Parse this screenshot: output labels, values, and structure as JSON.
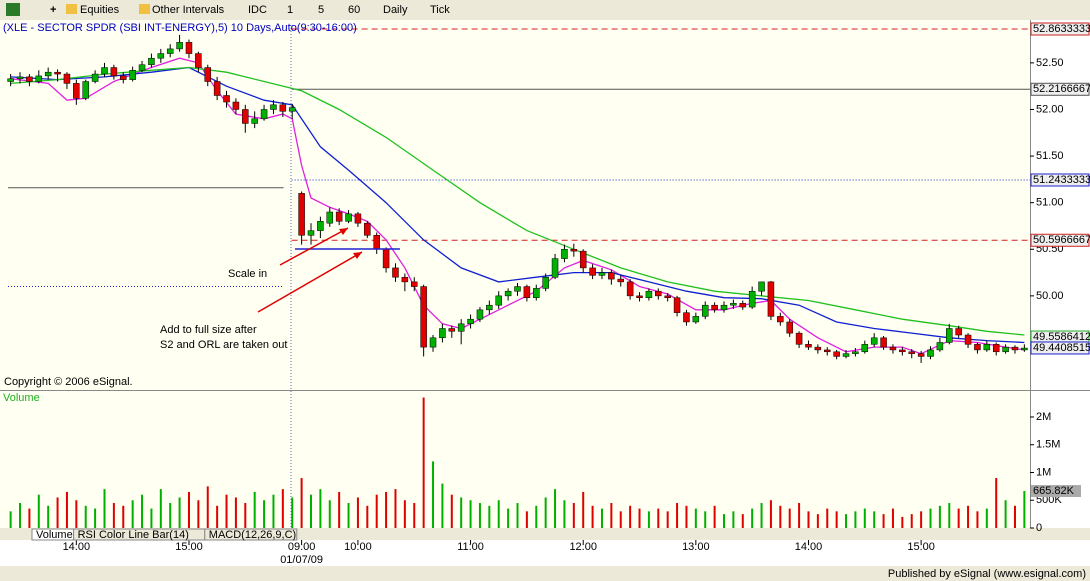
{
  "toolbar": {
    "items": [
      "Equities",
      "Other Intervals",
      "IDC",
      "1",
      "5",
      "60",
      "Daily",
      "Tick"
    ]
  },
  "chart_data": [
    {
      "type": "candlestick",
      "title": "(XLE - SECTOR SPDR (SBI INT-ENERGY),5) 10 Days,Auto(9:30-16:00)",
      "copyright": "Copyright © 2006 eSignal.",
      "annotations": [
        "Scale in",
        "Add to full size after",
        "S2 and ORL are taken out"
      ],
      "xlim": [
        -0.6,
        108.6
      ],
      "xticks": [
        {
          "value": 7,
          "label": "14:00"
        },
        {
          "value": 19,
          "label": "15:00"
        },
        {
          "value": 31,
          "label": "09:00"
        },
        {
          "value": 37,
          "label": "10:00"
        },
        {
          "value": 49,
          "label": "11:00"
        },
        {
          "value": 61,
          "label": "12:00"
        },
        {
          "value": 73,
          "label": "13:00"
        },
        {
          "value": 85,
          "label": "14:00"
        },
        {
          "value": 97,
          "label": "15:00"
        }
      ],
      "xdate": {
        "value": 31,
        "label": "01/07/09"
      },
      "ylim": [
        48.99,
        52.96
      ],
      "yticks": [
        {
          "value": 52.5,
          "label": "52.50"
        },
        {
          "value": 52,
          "label": "52.00"
        },
        {
          "value": 51.5,
          "label": "51.50"
        },
        {
          "value": 51,
          "label": "51.00"
        },
        {
          "value": 50.5,
          "label": "50.50"
        },
        {
          "value": 50,
          "label": "50.00"
        }
      ],
      "up_color": "#00b000",
      "down_color": "#e00000",
      "levels": [
        {
          "value": 52.8633333,
          "color": "#d02020",
          "style": "dash",
          "line": true
        },
        {
          "value": 52.2166667,
          "color": "#555555",
          "style": "solid",
          "line": true
        },
        {
          "value": 51.2433333,
          "color": "#2020d0",
          "style": "dot",
          "line": true
        },
        {
          "value": 50.5966667,
          "color": "#d02020",
          "style": "dash",
          "line": true
        },
        {
          "value": 49.5586412,
          "color": "#20b020",
          "style": "solid",
          "line": false
        },
        {
          "value": 49.4408515,
          "color": "#2020d0",
          "style": "solid",
          "line": false
        }
      ],
      "prior_levels": [
        {
          "value": 51.16,
          "color": "#555555"
        },
        {
          "value": 50.1,
          "color": "#2020d0"
        }
      ],
      "ohlc": [
        [
          52.3,
          52.38,
          52.25,
          52.33
        ],
        [
          52.33,
          52.4,
          52.28,
          52.35
        ],
        [
          52.35,
          52.38,
          52.25,
          52.3
        ],
        [
          52.3,
          52.42,
          52.28,
          52.36
        ],
        [
          52.36,
          52.45,
          52.32,
          52.4
        ],
        [
          52.4,
          52.43,
          52.3,
          52.38
        ],
        [
          52.38,
          52.4,
          52.22,
          52.28
        ],
        [
          52.28,
          52.32,
          52.05,
          52.12
        ],
        [
          52.12,
          52.32,
          52.1,
          52.3
        ],
        [
          52.3,
          52.42,
          52.28,
          52.38
        ],
        [
          52.38,
          52.5,
          52.35,
          52.45
        ],
        [
          52.45,
          52.48,
          52.32,
          52.36
        ],
        [
          52.36,
          52.4,
          52.28,
          52.32
        ],
        [
          52.32,
          52.46,
          52.3,
          52.42
        ],
        [
          52.42,
          52.52,
          52.4,
          52.48
        ],
        [
          52.48,
          52.6,
          52.45,
          52.55
        ],
        [
          52.55,
          52.65,
          52.5,
          52.6
        ],
        [
          52.6,
          52.7,
          52.56,
          52.65
        ],
        [
          52.65,
          52.8,
          52.62,
          52.72
        ],
        [
          52.72,
          52.75,
          52.55,
          52.6
        ],
        [
          52.6,
          52.62,
          52.4,
          52.45
        ],
        [
          52.45,
          52.48,
          52.25,
          52.3
        ],
        [
          52.3,
          52.35,
          52.1,
          52.15
        ],
        [
          52.15,
          52.2,
          52.02,
          52.08
        ],
        [
          52.08,
          52.12,
          51.95,
          52.0
        ],
        [
          52.0,
          52.05,
          51.75,
          51.85
        ],
        [
          51.85,
          51.98,
          51.8,
          51.9
        ],
        [
          51.9,
          52.05,
          51.88,
          52.0
        ],
        [
          52.0,
          52.1,
          51.95,
          52.05
        ],
        [
          52.05,
          52.08,
          51.92,
          51.98
        ],
        [
          51.98,
          52.06,
          51.9,
          52.02
        ],
        [
          51.1,
          51.12,
          50.55,
          50.65
        ],
        [
          50.65,
          50.78,
          50.55,
          50.7
        ],
        [
          50.7,
          50.85,
          50.62,
          50.8
        ],
        [
          50.78,
          50.95,
          50.74,
          50.9
        ],
        [
          50.9,
          50.94,
          50.76,
          50.8
        ],
        [
          50.8,
          50.92,
          50.78,
          50.88
        ],
        [
          50.88,
          50.9,
          50.74,
          50.78
        ],
        [
          50.78,
          50.8,
          50.62,
          50.65
        ],
        [
          50.65,
          50.68,
          50.45,
          50.5
        ],
        [
          50.5,
          50.52,
          50.25,
          50.3
        ],
        [
          50.3,
          50.35,
          50.15,
          50.2
        ],
        [
          50.2,
          50.24,
          50.05,
          50.15
        ],
        [
          50.15,
          50.2,
          50.05,
          50.1
        ],
        [
          50.1,
          50.12,
          49.35,
          49.45
        ],
        [
          49.45,
          49.58,
          49.4,
          49.55
        ],
        [
          49.55,
          49.7,
          49.5,
          49.65
        ],
        [
          49.65,
          49.68,
          49.55,
          49.62
        ],
        [
          49.62,
          49.75,
          49.48,
          49.7
        ],
        [
          49.7,
          49.8,
          49.65,
          49.75
        ],
        [
          49.75,
          49.88,
          49.72,
          49.85
        ],
        [
          49.85,
          49.95,
          49.8,
          49.9
        ],
        [
          49.9,
          50.05,
          49.86,
          50.0
        ],
        [
          50.0,
          50.08,
          49.95,
          50.05
        ],
        [
          50.05,
          50.14,
          50.0,
          50.1
        ],
        [
          50.1,
          50.12,
          49.94,
          49.98
        ],
        [
          49.98,
          50.12,
          49.95,
          50.08
        ],
        [
          50.08,
          50.24,
          50.05,
          50.2
        ],
        [
          50.2,
          50.45,
          50.18,
          50.4
        ],
        [
          50.4,
          50.55,
          50.36,
          50.5
        ],
        [
          50.5,
          50.56,
          50.42,
          50.48
        ],
        [
          50.48,
          50.5,
          50.25,
          50.3
        ],
        [
          50.3,
          50.34,
          50.18,
          50.22
        ],
        [
          50.22,
          50.3,
          50.18,
          50.25
        ],
        [
          50.25,
          50.28,
          50.12,
          50.18
        ],
        [
          50.18,
          50.22,
          50.1,
          50.15
        ],
        [
          50.15,
          50.18,
          49.96,
          50.0
        ],
        [
          50.0,
          50.04,
          49.94,
          49.98
        ],
        [
          49.98,
          50.08,
          49.95,
          50.05
        ],
        [
          50.05,
          50.08,
          49.96,
          50.0
        ],
        [
          50.0,
          50.03,
          49.94,
          49.98
        ],
        [
          49.98,
          50.0,
          49.78,
          49.82
        ],
        [
          49.82,
          49.85,
          49.68,
          49.72
        ],
        [
          49.72,
          49.82,
          49.7,
          49.78
        ],
        [
          49.78,
          49.94,
          49.75,
          49.9
        ],
        [
          49.9,
          49.93,
          49.82,
          49.85
        ],
        [
          49.85,
          49.94,
          49.82,
          49.9
        ],
        [
          49.9,
          49.96,
          49.86,
          49.92
        ],
        [
          49.92,
          49.95,
          49.85,
          49.88
        ],
        [
          49.88,
          50.1,
          49.86,
          50.05
        ],
        [
          50.05,
          50.15,
          50.0,
          50.15
        ],
        [
          50.15,
          50.16,
          49.74,
          49.78
        ],
        [
          49.78,
          49.82,
          49.68,
          49.72
        ],
        [
          49.72,
          49.75,
          49.56,
          49.6
        ],
        [
          49.6,
          49.62,
          49.44,
          49.48
        ],
        [
          49.48,
          49.52,
          49.42,
          49.45
        ],
        [
          49.45,
          49.48,
          49.38,
          49.42
        ],
        [
          49.42,
          49.45,
          49.36,
          49.4
        ],
        [
          49.4,
          49.42,
          49.32,
          49.35
        ],
        [
          49.35,
          49.42,
          49.33,
          49.38
        ],
        [
          49.38,
          49.44,
          49.35,
          49.4
        ],
        [
          49.4,
          49.52,
          49.38,
          49.48
        ],
        [
          49.48,
          49.6,
          49.45,
          49.55
        ],
        [
          49.55,
          49.57,
          49.42,
          49.45
        ],
        [
          49.45,
          49.48,
          49.38,
          49.42
        ],
        [
          49.42,
          49.45,
          49.36,
          49.4
        ],
        [
          49.4,
          49.43,
          49.33,
          49.38
        ],
        [
          49.38,
          49.41,
          49.28,
          49.35
        ],
        [
          49.35,
          49.46,
          49.32,
          49.42
        ],
        [
          49.42,
          49.55,
          49.4,
          49.5
        ],
        [
          49.5,
          49.7,
          49.48,
          49.65
        ],
        [
          49.65,
          49.68,
          49.55,
          49.58
        ],
        [
          49.58,
          49.6,
          49.44,
          49.48
        ],
        [
          49.48,
          49.5,
          49.38,
          49.42
        ],
        [
          49.42,
          49.52,
          49.4,
          49.48
        ],
        [
          49.48,
          49.5,
          49.36,
          49.4
        ],
        [
          49.4,
          49.48,
          49.38,
          49.45
        ],
        [
          49.45,
          49.47,
          49.38,
          49.42
        ],
        [
          49.42,
          49.48,
          49.4,
          49.44
        ]
      ],
      "series": [
        {
          "color": "#e020e0",
          "x": [
            0,
            4,
            6,
            8,
            11,
            15,
            18,
            20,
            22,
            24,
            27,
            29,
            30,
            31,
            32,
            34,
            36,
            38,
            40,
            42,
            44,
            46,
            48,
            50,
            53,
            56,
            59,
            61,
            64,
            67,
            70,
            73,
            76,
            79,
            81,
            83,
            86,
            89,
            92,
            95,
            97,
            100,
            103,
            106,
            108
          ],
          "values": [
            52.33,
            52.28,
            52.1,
            52.12,
            52.3,
            52.45,
            52.55,
            52.5,
            52.2,
            51.95,
            51.9,
            51.95,
            51.9,
            51.4,
            51.05,
            50.95,
            50.88,
            50.8,
            50.6,
            50.3,
            49.9,
            49.7,
            49.65,
            49.75,
            49.9,
            50.05,
            50.3,
            50.38,
            50.28,
            50.1,
            50.02,
            49.85,
            49.85,
            49.92,
            49.95,
            49.75,
            49.55,
            49.4,
            49.45,
            49.45,
            49.38,
            49.52,
            49.5,
            49.45,
            49.42
          ]
        },
        {
          "color": "#1020d0",
          "x": [
            0,
            5,
            10,
            15,
            19,
            23,
            27,
            30,
            33,
            36,
            40,
            44,
            48,
            52,
            56,
            60,
            64,
            68,
            72,
            76,
            80,
            84,
            88,
            92,
            96,
            100,
            104,
            108
          ],
          "values": [
            52.35,
            52.32,
            52.35,
            52.4,
            52.45,
            52.25,
            52.1,
            52.05,
            51.6,
            51.35,
            51.0,
            50.6,
            50.3,
            50.15,
            50.2,
            50.25,
            50.25,
            50.15,
            50.05,
            49.98,
            49.97,
            49.9,
            49.72,
            49.65,
            49.6,
            49.55,
            49.52,
            49.5
          ]
        },
        {
          "color": "#20c020",
          "x": [
            0,
            5,
            10,
            15,
            19,
            23,
            27,
            31,
            35,
            40,
            45,
            50,
            55,
            60,
            65,
            70,
            75,
            80,
            85,
            90,
            95,
            100,
            104,
            108
          ],
          "values": [
            52.28,
            52.32,
            52.38,
            52.42,
            52.45,
            52.4,
            52.3,
            52.2,
            52.0,
            51.7,
            51.35,
            51.0,
            50.7,
            50.5,
            50.3,
            50.15,
            50.05,
            50.0,
            49.95,
            49.85,
            49.75,
            49.68,
            49.62,
            49.58
          ]
        }
      ]
    },
    {
      "type": "bar",
      "title": "Volume",
      "ylim": [
        0,
        2450000
      ],
      "yticks": [
        {
          "value": 0,
          "label": "0"
        },
        {
          "value": 500000,
          "label": "500K"
        },
        {
          "value": 1000000,
          "label": "1M"
        },
        {
          "value": 1500000,
          "label": "1.5M"
        },
        {
          "value": 2000000,
          "label": "2M"
        }
      ],
      "last_label": {
        "value": 665820,
        "label": "665.82K"
      },
      "values": [
        300000,
        450000,
        350000,
        600000,
        400000,
        550000,
        650000,
        500000,
        400000,
        350000,
        700000,
        450000,
        400000,
        500000,
        600000,
        350000,
        700000,
        450000,
        550000,
        650000,
        500000,
        750000,
        400000,
        600000,
        550000,
        450000,
        650000,
        500000,
        600000,
        700000,
        550000,
        900000,
        600000,
        700000,
        500000,
        650000,
        450000,
        550000,
        400000,
        600000,
        650000,
        700000,
        500000,
        450000,
        2350000,
        1200000,
        800000,
        600000,
        550000,
        500000,
        450000,
        400000,
        500000,
        350000,
        450000,
        300000,
        400000,
        550000,
        700000,
        500000,
        450000,
        650000,
        400000,
        350000,
        450000,
        300000,
        400000,
        350000,
        300000,
        350000,
        300000,
        450000,
        400000,
        350000,
        300000,
        400000,
        250000,
        300000,
        250000,
        350000,
        450000,
        500000,
        400000,
        350000,
        450000,
        300000,
        250000,
        350000,
        300000,
        250000,
        300000,
        350000,
        300000,
        250000,
        350000,
        200000,
        250000,
        300000,
        350000,
        400000,
        450000,
        350000,
        400000,
        300000,
        350000,
        900000,
        500000,
        400000,
        665820
      ]
    }
  ],
  "tabs": [
    "Volume",
    "RSI Color Line Bar(14)",
    "MACD(12,26,9,C)"
  ],
  "footer": "Published by eSignal (www.esignal.com)"
}
